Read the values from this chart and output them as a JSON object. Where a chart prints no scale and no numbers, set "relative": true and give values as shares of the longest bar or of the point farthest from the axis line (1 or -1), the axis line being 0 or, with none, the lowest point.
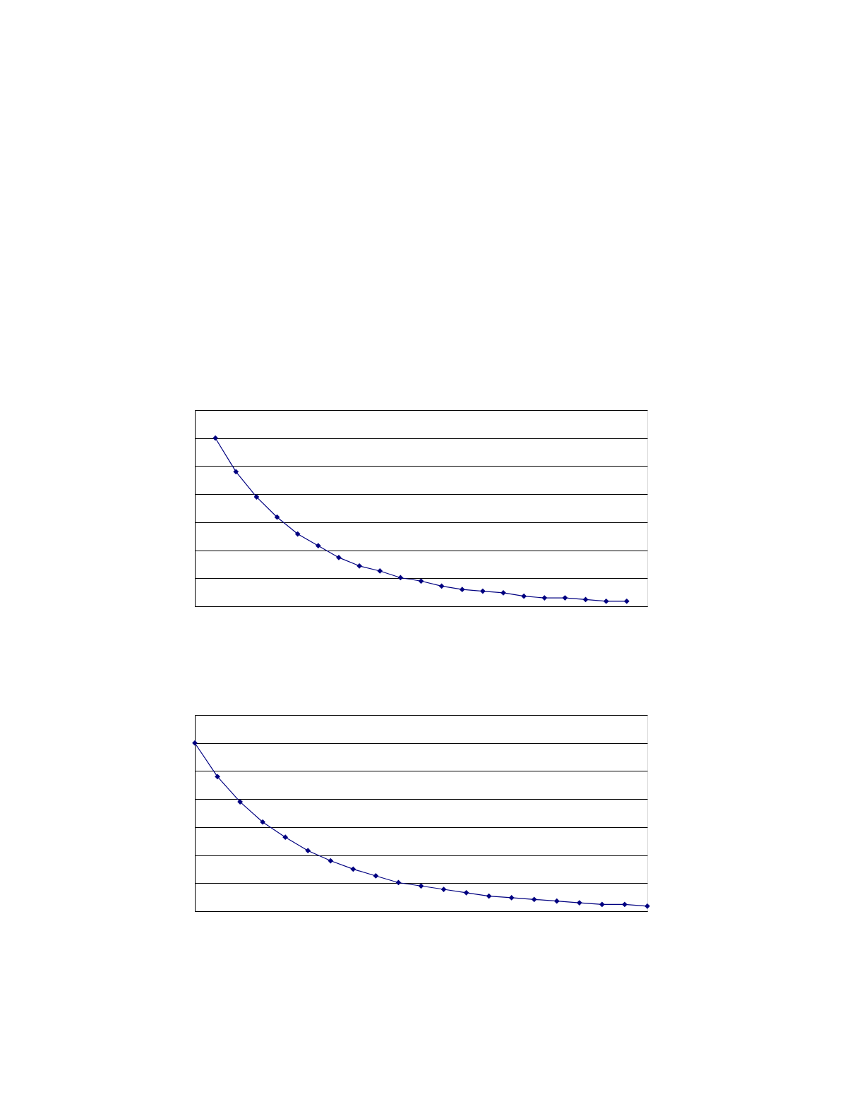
{
  "chart_data": [
    {
      "type": "line",
      "relative": true,
      "categories": [
        null,
        null,
        null,
        null,
        null,
        null,
        null,
        null,
        null,
        null,
        null,
        null,
        null,
        null,
        null,
        null,
        null,
        null,
        null,
        null,
        null
      ],
      "series": [
        {
          "color": "#000080",
          "values": [
            1,
            0.8,
            0.65,
            0.53,
            0.43,
            0.36,
            0.29,
            0.24,
            0.21,
            0.17,
            0.15,
            0.12,
            0.1,
            0.09,
            0.08,
            0.06,
            0.05,
            0.05,
            0.04,
            0.03,
            0.03
          ]
        }
      ],
      "marker": "diamond",
      "line_style": "solid",
      "grid": "y",
      "tick_labels": false
    },
    {
      "type": "line",
      "relative": true,
      "categories": [
        null,
        null,
        null,
        null,
        null,
        null,
        null,
        null,
        null,
        null,
        null,
        null,
        null,
        null,
        null,
        null,
        null,
        null,
        null,
        null,
        null
      ],
      "series": [
        {
          "color": "#000080",
          "values": [
            1,
            0.8,
            0.65,
            0.53,
            0.44,
            0.36,
            0.3,
            0.25,
            0.21,
            0.17,
            0.15,
            0.13,
            0.11,
            0.09,
            0.08,
            0.07,
            0.06,
            0.05,
            0.04,
            0.04,
            0.03
          ]
        }
      ],
      "marker": "diamond",
      "line_style": "solid",
      "grid": "y",
      "tick_labels": false
    }
  ]
}
